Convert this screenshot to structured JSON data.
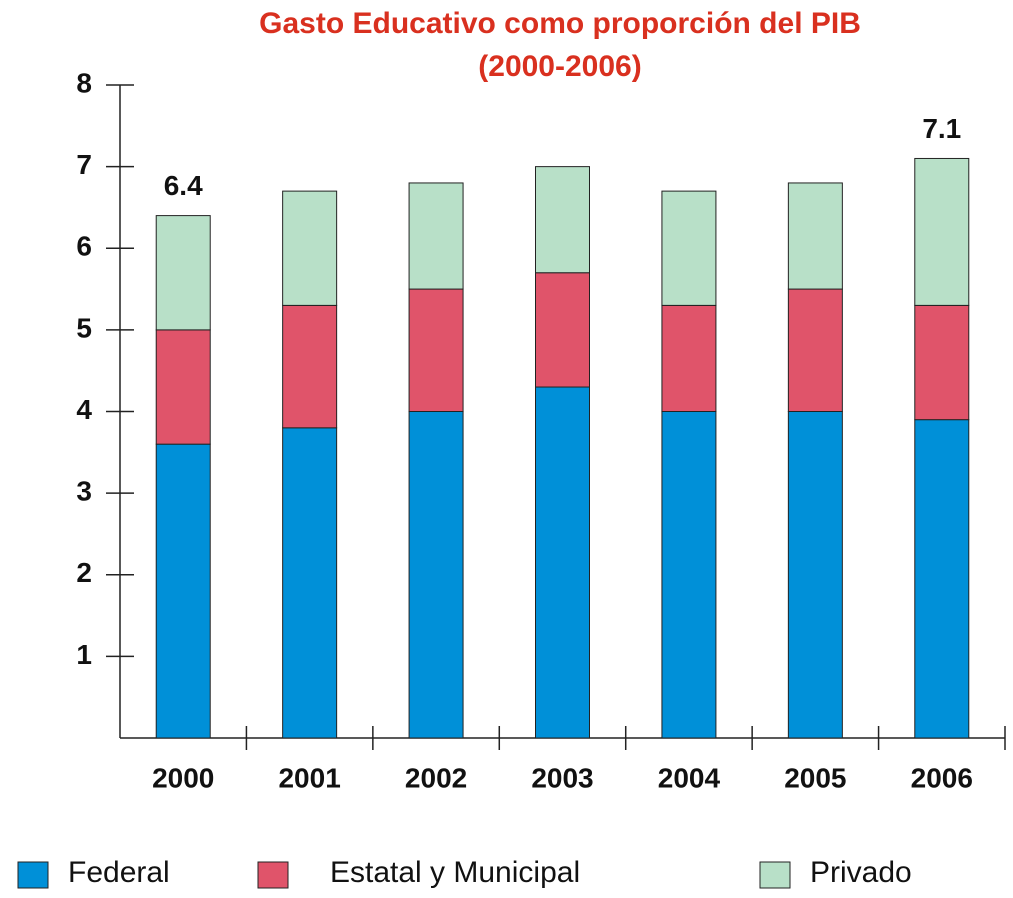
{
  "chart_data": {
    "type": "bar",
    "stacked": true,
    "title": "Gasto Educativo como proporción del PIB",
    "subtitle": "(2000-2006)",
    "categories": [
      "2000",
      "2001",
      "2002",
      "2003",
      "2004",
      "2005",
      "2006"
    ],
    "series": [
      {
        "name": "Federal",
        "color": "#0090d8",
        "values": [
          3.6,
          3.8,
          4.0,
          4.3,
          4.0,
          4.0,
          3.9
        ]
      },
      {
        "name": "Estatal y Municipal",
        "color": "#e0546a",
        "values": [
          1.4,
          1.5,
          1.5,
          1.4,
          1.3,
          1.5,
          1.4
        ]
      },
      {
        "name": "Privado",
        "color": "#b8e0c8",
        "values": [
          1.4,
          1.4,
          1.3,
          1.3,
          1.4,
          1.3,
          1.8
        ]
      }
    ],
    "annotations": [
      {
        "category": 0,
        "text": "6.4"
      },
      {
        "category": 6,
        "text": "7.1"
      }
    ],
    "ylim": [
      0,
      8
    ],
    "yticks": [
      1,
      2,
      3,
      4,
      5,
      6,
      7,
      8
    ],
    "grid": false
  }
}
